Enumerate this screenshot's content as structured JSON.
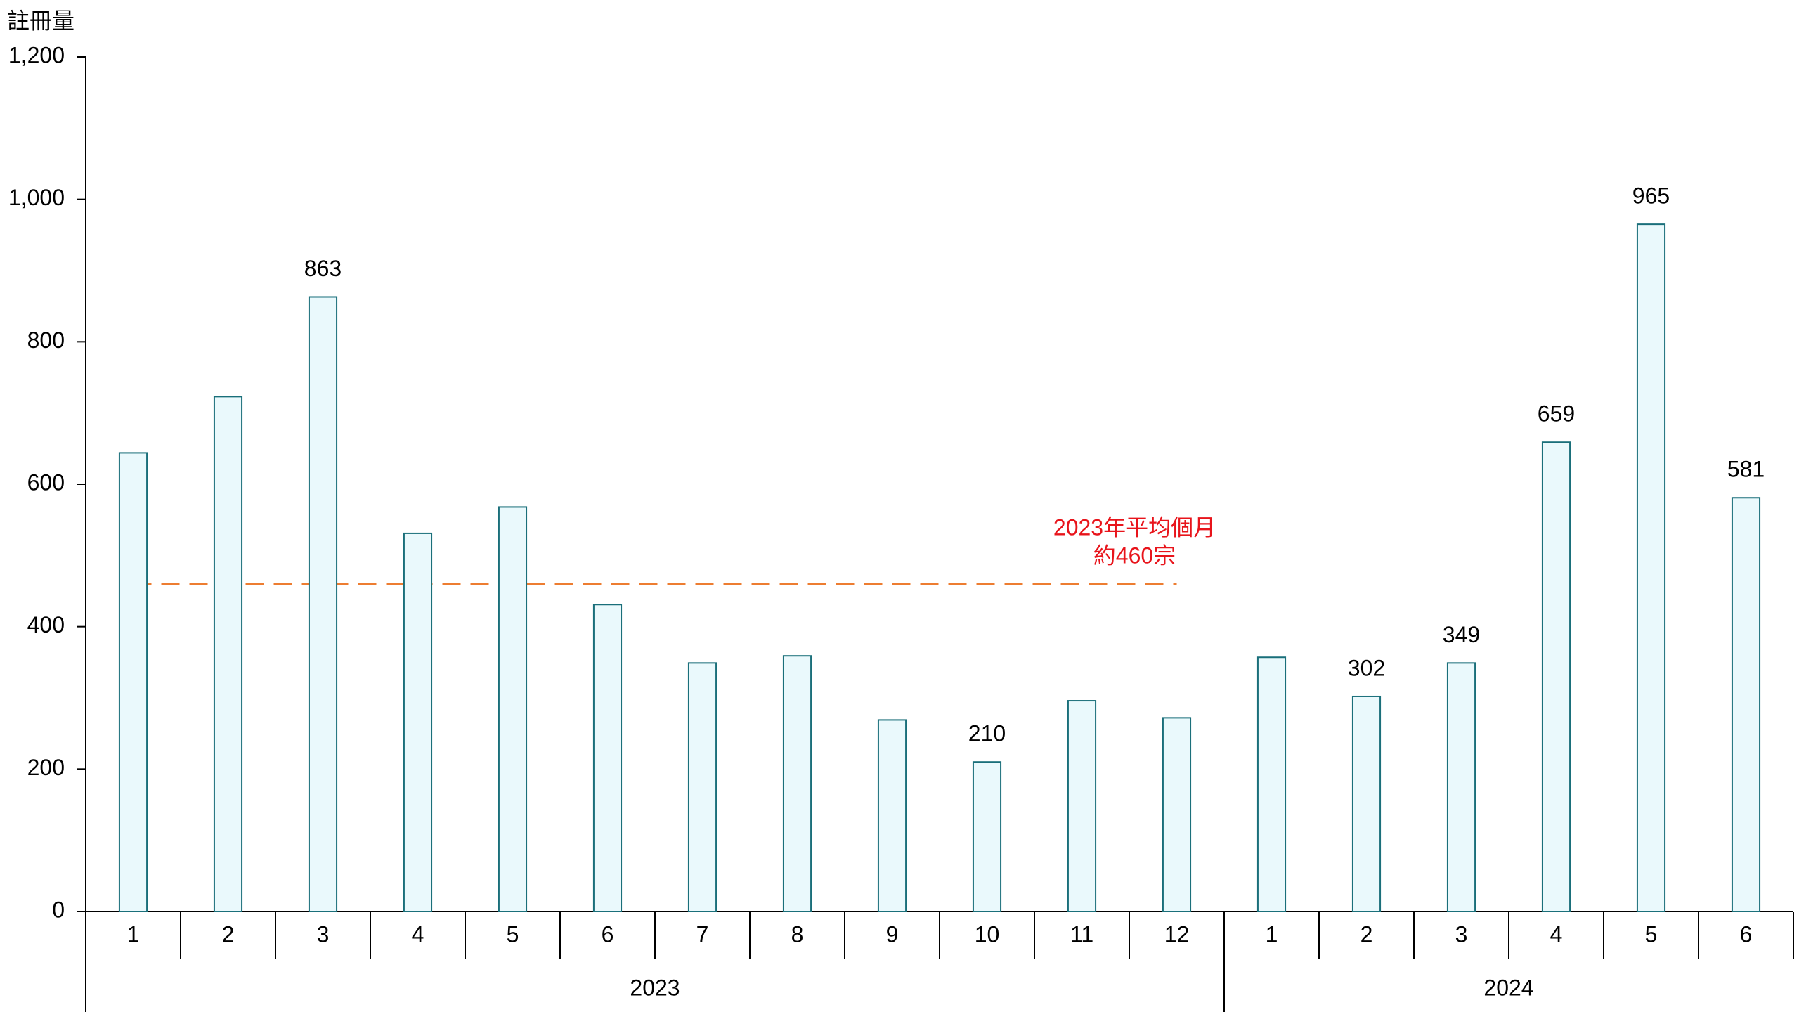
{
  "chart_data": {
    "type": "bar",
    "y_label": "註冊量",
    "categories": [
      "1",
      "2",
      "3",
      "4",
      "5",
      "6",
      "7",
      "8",
      "9",
      "10",
      "11",
      "12",
      "1",
      "2",
      "3",
      "4",
      "5",
      "6"
    ],
    "groups": [
      {
        "label": "2023",
        "count": 12,
        "average": {
          "value": 460,
          "label_lines": [
            "2023年平均個月",
            "約460宗"
          ],
          "color": "#ed7d31"
        }
      },
      {
        "label": "2024",
        "count": 6
      }
    ],
    "values": [
      644,
      723,
      863,
      531,
      568,
      431,
      349,
      359,
      269,
      210,
      296,
      272,
      357,
      302,
      349,
      659,
      965,
      581
    ],
    "value_labels": [
      null,
      null,
      "863",
      null,
      null,
      null,
      null,
      null,
      null,
      "210",
      null,
      null,
      null,
      "302",
      "349",
      "659",
      "965",
      "581"
    ],
    "color": "#eaf9fc",
    "edge_color": "#1a6f7a",
    "ylim": [
      0,
      1200
    ],
    "yticks": [
      0,
      200,
      400,
      600,
      800,
      {
        "value": 1000,
        "label": "1,000"
      },
      {
        "value": 1200,
        "label": "1,200"
      }
    ],
    "grid": false
  }
}
